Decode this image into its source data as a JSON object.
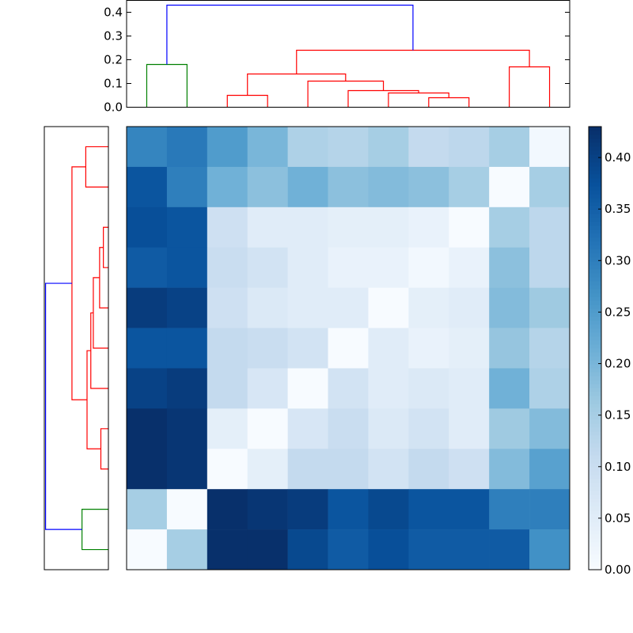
{
  "chart_data": {
    "type": "heatmap",
    "title": "",
    "xlabel": "",
    "ylabel": "",
    "colormap": "Blues",
    "value_range": [
      0,
      0.43
    ],
    "matrix": [
      [
        0.29,
        0.31,
        0.25,
        0.2,
        0.14,
        0.13,
        0.15,
        0.11,
        0.12,
        0.15,
        0.01
      ],
      [
        0.37,
        0.3,
        0.21,
        0.18,
        0.21,
        0.18,
        0.19,
        0.18,
        0.15,
        0.0,
        0.15
      ],
      [
        0.38,
        0.37,
        0.09,
        0.05,
        0.05,
        0.04,
        0.04,
        0.03,
        0.0,
        0.15,
        0.12
      ],
      [
        0.36,
        0.37,
        0.1,
        0.08,
        0.05,
        0.03,
        0.03,
        0.01,
        0.03,
        0.18,
        0.12
      ],
      [
        0.41,
        0.4,
        0.09,
        0.06,
        0.05,
        0.05,
        0.0,
        0.04,
        0.05,
        0.19,
        0.16
      ],
      [
        0.37,
        0.37,
        0.11,
        0.1,
        0.08,
        0.0,
        0.05,
        0.03,
        0.04,
        0.17,
        0.13
      ],
      [
        0.4,
        0.41,
        0.11,
        0.07,
        0.0,
        0.08,
        0.05,
        0.06,
        0.05,
        0.21,
        0.14
      ],
      [
        0.44,
        0.42,
        0.04,
        0.0,
        0.07,
        0.1,
        0.06,
        0.08,
        0.05,
        0.16,
        0.19
      ],
      [
        0.45,
        0.42,
        0.0,
        0.04,
        0.11,
        0.11,
        0.08,
        0.11,
        0.09,
        0.19,
        0.24
      ],
      [
        0.15,
        0.0,
        0.43,
        0.42,
        0.41,
        0.37,
        0.39,
        0.37,
        0.37,
        0.3,
        0.3
      ],
      [
        0.0,
        0.15,
        0.45,
        0.44,
        0.39,
        0.36,
        0.38,
        0.36,
        0.36,
        0.36,
        0.27
      ]
    ],
    "dendrogram_top": {
      "yticks": [
        "0.0",
        "0.1",
        "0.2",
        "0.3",
        "0.4"
      ],
      "ylim": [
        0,
        0.45
      ],
      "links": [
        {
          "a": 0,
          "b": 1,
          "h": 0.18,
          "color": "#008000"
        },
        {
          "a": 2,
          "b": 3,
          "h": 0.05,
          "color": "#ff0000"
        },
        {
          "a": 7,
          "b": 8,
          "h": 0.04,
          "color": "#ff0000"
        },
        {
          "a": 6,
          "b": 7.5,
          "h": 0.06,
          "color": "#ff0000"
        },
        {
          "a": 5,
          "b": 6.75,
          "h": 0.07,
          "color": "#ff0000"
        },
        {
          "a": 4,
          "b": 5.875,
          "h": 0.11,
          "color": "#ff0000"
        },
        {
          "a": 2.5,
          "b": 4.9375,
          "h": 0.14,
          "color": "#ff0000"
        },
        {
          "a": 9,
          "b": 10,
          "h": 0.17,
          "color": "#ff0000"
        },
        {
          "a": 3.71875,
          "b": 9.5,
          "h": 0.24,
          "color": "#ff0000"
        },
        {
          "a": 0.5,
          "b": 6.609375,
          "h": 0.43,
          "color": "#0000ff"
        }
      ]
    },
    "dendrogram_left": {
      "links": [
        {
          "a": 0,
          "b": 1,
          "h": 0.18,
          "color": "#ff0000"
        },
        {
          "a": 2,
          "b": 3,
          "h": 0.04,
          "color": "#ff0000"
        },
        {
          "a": 2.5,
          "b": 4,
          "h": 0.07,
          "color": "#ff0000"
        },
        {
          "a": 3.25,
          "b": 5,
          "h": 0.12,
          "color": "#ff0000"
        },
        {
          "a": 4.125,
          "b": 6,
          "h": 0.14,
          "color": "#ff0000"
        },
        {
          "a": 7,
          "b": 8,
          "h": 0.06,
          "color": "#ff0000"
        },
        {
          "a": 5.0625,
          "b": 7.5,
          "h": 0.17,
          "color": "#ff0000"
        },
        {
          "a": 0.5,
          "b": 6.28125,
          "h": 0.29,
          "color": "#ff0000"
        },
        {
          "a": 9,
          "b": 10,
          "h": 0.21,
          "color": "#008000"
        },
        {
          "a": 3.390625,
          "b": 9.5,
          "h": 0.5,
          "color": "#0000ff"
        }
      ],
      "xlim": [
        0,
        0.51
      ]
    },
    "colorbar": {
      "ticks": [
        "0.00",
        "0.05",
        "0.10",
        "0.15",
        "0.20",
        "0.25",
        "0.30",
        "0.35",
        "0.40"
      ],
      "range": [
        0,
        0.43
      ]
    }
  }
}
